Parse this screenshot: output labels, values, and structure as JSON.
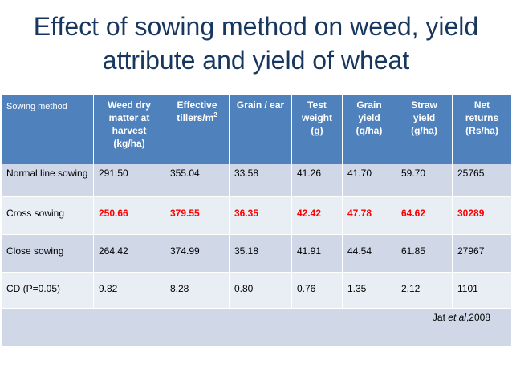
{
  "title": "Effect of sowing method on weed, yield attribute and yield of wheat",
  "table": {
    "headers": [
      "Sowing method",
      "Weed dry matter at harvest (kg/ha)",
      "Effective tillers/m",
      "Grain / ear",
      "Test weight (g)",
      "Grain yield (q/ha)",
      "Straw yield (g/ha)",
      "Net returns (Rs/ha)"
    ],
    "header_superscript": "2",
    "rows": [
      [
        "Normal line sowing",
        "291.50",
        "355.04",
        "33.58",
        "41.26",
        "41.70",
        "59.70",
        "25765"
      ],
      [
        "Cross sowing",
        "250.66",
        "379.55",
        "36.35",
        "42.42",
        "47.78",
        "64.62",
        "30289"
      ],
      [
        "Close sowing",
        "264.42",
        "374.99",
        "35.18",
        "41.91",
        "44.54",
        "61.85",
        "27967"
      ],
      [
        "CD (P=0.05)",
        "9.82",
        "8.28",
        "0.80",
        "0.76",
        "1.35",
        "2.12",
        "1101"
      ]
    ],
    "highlighted_row": "Cross sowing",
    "highlight_color": "#ff0000",
    "header_color": "#4f81bd"
  },
  "citation": {
    "author": "Jat",
    "etal": "et al",
    "year": ",2008"
  }
}
